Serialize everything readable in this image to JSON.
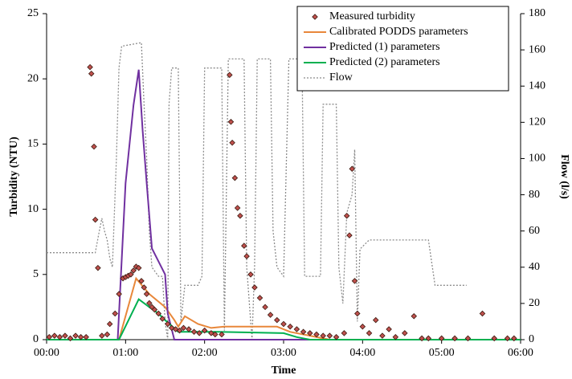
{
  "chart_data": {
    "type": "line",
    "x_label": "Time",
    "y_label": "Turbidity (NTU)",
    "y2_label": "Flow (l/s)",
    "xlim": [
      0,
      360
    ],
    "xticks": [
      {
        "value": 0,
        "label": "00:00"
      },
      {
        "value": 60,
        "label": "01:00"
      },
      {
        "value": 120,
        "label": "02:00"
      },
      {
        "value": 180,
        "label": "03:00"
      },
      {
        "value": 240,
        "label": "04:00"
      },
      {
        "value": 300,
        "label": "05:00"
      },
      {
        "value": 360,
        "label": "06:00"
      }
    ],
    "ylim": [
      0,
      25
    ],
    "yticks": [
      0,
      5,
      10,
      15,
      20,
      25
    ],
    "y2lim": [
      0,
      180
    ],
    "y2ticks": [
      0,
      20,
      40,
      60,
      80,
      100,
      120,
      140,
      160,
      180
    ],
    "legend": "top-right",
    "series": [
      {
        "name": "Measured turbidity",
        "kind": "scatter",
        "color": "#c0504d",
        "x": [
          2,
          6,
          10,
          14,
          18,
          22,
          26,
          30,
          33,
          34,
          36,
          37,
          39,
          42,
          46,
          48,
          52,
          55,
          58,
          60,
          62,
          64,
          66,
          68,
          70,
          72,
          74,
          76,
          78,
          80,
          82,
          85,
          88,
          92,
          95,
          98,
          101,
          104,
          108,
          112,
          116,
          120,
          125,
          128,
          133,
          139,
          140,
          141,
          143,
          145,
          147,
          150,
          152,
          155,
          158,
          162,
          166,
          170,
          175,
          180,
          185,
          190,
          195,
          200,
          205,
          210,
          215,
          220,
          226,
          228,
          230,
          232,
          234,
          236,
          240,
          245,
          250,
          255,
          260,
          265,
          272,
          279,
          285,
          290,
          300,
          310,
          320,
          331,
          340,
          350,
          355
        ],
        "values": [
          0.2,
          0.3,
          0.2,
          0.3,
          0.1,
          0.3,
          0.2,
          0.2,
          20.9,
          20.4,
          14.8,
          9.2,
          5.5,
          0.3,
          0.4,
          1.2,
          2.0,
          3.5,
          4.7,
          4.8,
          4.9,
          5.0,
          5.3,
          5.6,
          5.5,
          4.5,
          4.0,
          3.5,
          2.8,
          2.5,
          2.3,
          2.0,
          1.6,
          1.2,
          0.9,
          0.8,
          0.7,
          0.9,
          0.8,
          0.6,
          0.5,
          0.7,
          0.5,
          0.4,
          0.4,
          20.3,
          16.7,
          15.1,
          12.4,
          10.1,
          9.5,
          7.2,
          6.4,
          5.0,
          4.0,
          3.2,
          2.5,
          1.9,
          1.5,
          1.2,
          1.0,
          0.8,
          0.6,
          0.5,
          0.4,
          0.3,
          0.3,
          0.2,
          0.5,
          9.5,
          8.0,
          13.1,
          4.5,
          2.0,
          1.0,
          0.5,
          1.5,
          0.3,
          0.8,
          0.2,
          0.5,
          1.8,
          0.1,
          0.1,
          0.1,
          0.1,
          0.1,
          2.0,
          0.1,
          0.1,
          0.1
        ]
      },
      {
        "name": "Calibrated PODDS parameters",
        "kind": "line",
        "color": "#e8873a",
        "x": [
          0,
          55,
          68,
          78,
          90,
          97,
          100,
          105,
          115,
          125,
          135,
          175,
          185,
          200,
          215,
          360
        ],
        "values": [
          0,
          0,
          4.7,
          3.5,
          2.5,
          1.5,
          1.0,
          1.8,
          1.2,
          0.9,
          1.0,
          1.0,
          0.6,
          0.3,
          0,
          0
        ]
      },
      {
        "name": "Predicted (1) parameters",
        "kind": "line",
        "color": "#7030a0",
        "x": [
          0,
          54,
          60,
          66,
          70,
          73,
          76,
          80,
          85,
          90,
          92,
          97,
          360
        ],
        "values": [
          0,
          0,
          12,
          18,
          20.7,
          16,
          12,
          7,
          6,
          5,
          2,
          0,
          0
        ]
      },
      {
        "name": "Predicted (2) parameters",
        "kind": "line",
        "color": "#00b050",
        "x": [
          0,
          55,
          70,
          78,
          85,
          90,
          100,
          130,
          180,
          190,
          200,
          360
        ],
        "values": [
          0,
          0,
          3.1,
          2.5,
          2.0,
          1.5,
          0.6,
          0.6,
          0.5,
          0.2,
          0,
          0
        ]
      },
      {
        "name": "Flow",
        "kind": "dotted",
        "axis": "y2",
        "color": "#8c8c8c",
        "x": [
          0,
          37,
          40,
          42,
          44,
          46,
          48,
          50,
          53,
          55,
          57,
          72,
          74,
          76,
          78,
          80,
          85,
          88,
          90,
          92,
          93,
          95,
          100,
          102,
          105,
          115,
          118,
          120,
          133,
          135,
          138,
          150,
          152,
          156,
          158,
          160,
          170,
          172,
          175,
          180,
          184,
          194,
          196,
          208,
          210,
          220,
          222,
          225,
          228,
          232,
          234,
          236,
          238,
          245,
          290,
          295,
          310,
          319
        ],
        "values": [
          48,
          48,
          60,
          67,
          60,
          55,
          45,
          40,
          100,
          150,
          162,
          164,
          130,
          100,
          60,
          40,
          35,
          35,
          10,
          0,
          130,
          150,
          150,
          10,
          30,
          30,
          35,
          150,
          150,
          5,
          155,
          155,
          40,
          0,
          40,
          155,
          155,
          60,
          40,
          35,
          155,
          155,
          35,
          35,
          130,
          130,
          40,
          20,
          70,
          80,
          105,
          10,
          50,
          55,
          55,
          30,
          30,
          30
        ]
      }
    ]
  }
}
